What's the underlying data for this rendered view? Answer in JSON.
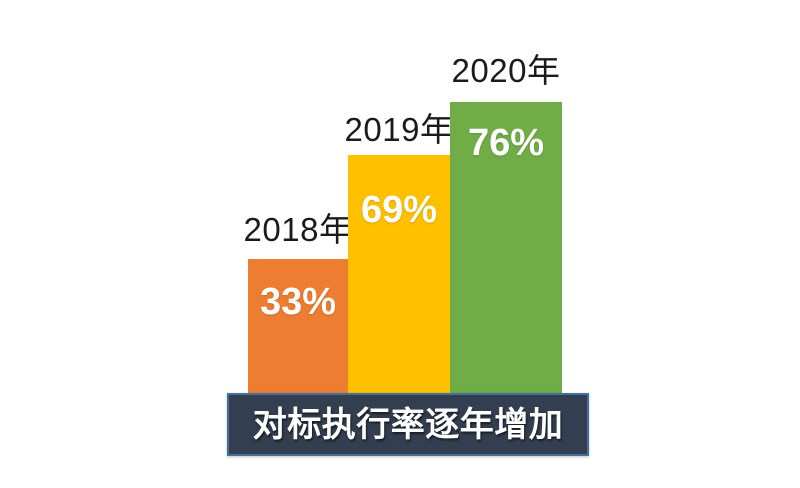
{
  "chart_data": {
    "type": "bar",
    "title": "对标执行率逐年增加",
    "categories": [
      "2018年",
      "2019年",
      "2020年"
    ],
    "values": [
      33,
      69,
      76
    ],
    "unit": "%",
    "ylim": [
      0,
      100
    ],
    "grid": false,
    "legend": "none",
    "bars": [
      {
        "year_label": "2018年",
        "value": 33,
        "value_label": "33%",
        "color": "#ED7D31"
      },
      {
        "year_label": "2019年",
        "value": 69,
        "value_label": "69%",
        "color": "#FFC000"
      },
      {
        "year_label": "2020年",
        "value": 76,
        "value_label": "76%",
        "color": "#70AD47"
      }
    ],
    "banner": {
      "text": "对标执行率逐年增加",
      "background": "#333F50",
      "border_color": "#41719C",
      "text_color": "#FFFFFF"
    }
  }
}
